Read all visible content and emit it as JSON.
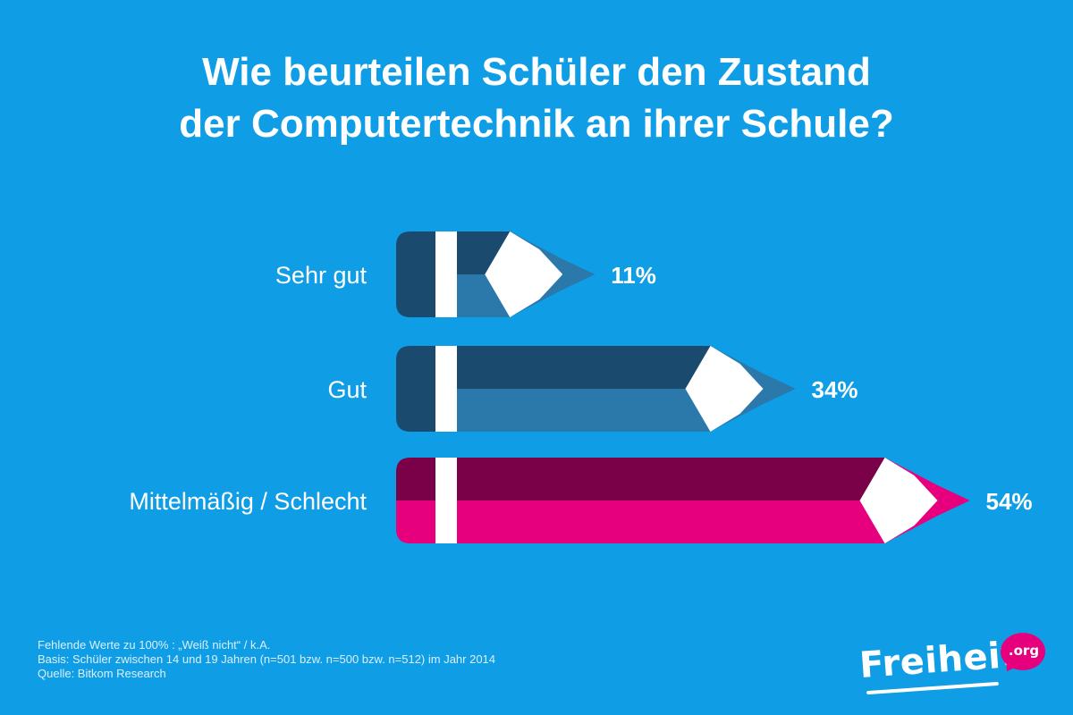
{
  "title_lines": [
    "Wie beurteilen Schüler den Zustand",
    "der Computertechnik an ihrer Schule?"
  ],
  "chart_data": {
    "type": "bar",
    "orientation": "horizontal",
    "categories": [
      "Sehr gut",
      "Gut",
      "Mittelmäßig / Schlecht"
    ],
    "values": [
      11,
      34,
      54
    ],
    "value_labels": [
      "11%",
      "34%",
      "54%"
    ],
    "unit": "%",
    "colors": {
      "Sehr gut": {
        "dark": "#1a4a6e",
        "light": "#2b78ab",
        "stripe": "#ffffff",
        "wood": "#ffffff"
      },
      "Gut": {
        "dark": "#1a4a6e",
        "light": "#2b78ab",
        "stripe": "#ffffff",
        "wood": "#ffffff"
      },
      "Mittelmäßig / Schlecht": {
        "dark": "#7a0047",
        "light": "#e6007e",
        "stripe": "#ffffff",
        "wood": "#ffffff"
      }
    },
    "style": "pencil"
  },
  "footer": {
    "lines": [
      "Fehlende Werte zu 100% : „Weiß nicht“ / k.A.",
      "Basis: Schüler zwischen 14 und 19 Jahren (n=501 bzw. n=500 bzw. n=512) im Jahr 2014",
      "Quelle: Bitkom Research"
    ]
  },
  "logo": {
    "word": "Freiheit",
    "suffix": ".org",
    "bubble_color": "#e6007e"
  },
  "colors": {
    "background": "#0f9ee6",
    "text": "#ffffff"
  }
}
